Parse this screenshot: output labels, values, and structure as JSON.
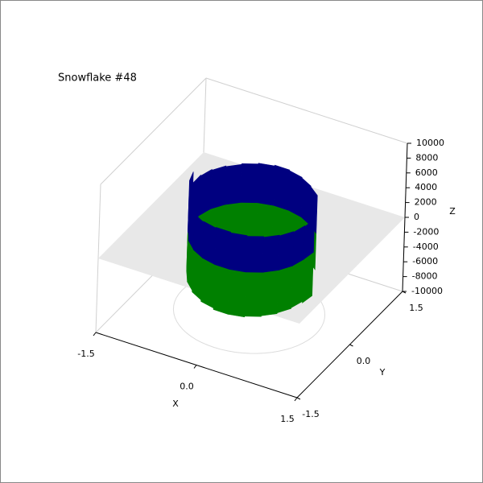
{
  "chart_data": {
    "type": "stem3d",
    "title": "Snowflake #48",
    "xlabel": "X",
    "ylabel": "Y",
    "zlabel": "Z",
    "xlim": [
      -1.5,
      1.5
    ],
    "xticks": [
      -1.5,
      {
        "value": 0,
        "label": "0.0"
      },
      1.5
    ],
    "ylim": [
      -1.5,
      1.5
    ],
    "yticks": [
      -1.5,
      {
        "value": 0,
        "label": "0.0"
      },
      1.5
    ],
    "zlim": [
      -10000,
      10000
    ],
    "zticks": [
      -10000,
      -8000,
      -6000,
      -4000,
      -2000,
      0,
      2000,
      4000,
      6000,
      8000,
      10000
    ],
    "x": [
      0.6,
      0.43,
      0.22,
      0.0,
      -0.22,
      -0.43,
      -0.6,
      -0.74,
      -0.82,
      -0.85,
      -0.82,
      -0.74,
      -0.6,
      -0.43,
      -0.22,
      0.0,
      0.22,
      0.43,
      0.6,
      0.74,
      0.82,
      0.85
    ],
    "y": [
      0.6,
      0.74,
      0.82,
      0.85,
      0.82,
      0.74,
      0.6,
      0.43,
      0.22,
      0.0,
      -0.22,
      -0.43,
      -0.6,
      -0.74,
      -0.82,
      -0.85,
      -0.82,
      -0.74,
      -0.6,
      -0.43,
      -0.22,
      0.0
    ],
    "series": [
      {
        "color": "#000080",
        "values": [
          5200,
          5300,
          5400,
          5500,
          5400,
          5300,
          5200,
          5300,
          5400,
          5500,
          7000,
          5000,
          4800,
          4900,
          5000,
          5100,
          5000,
          4900,
          4800,
          4700,
          4600,
          4500
        ]
      },
      {
        "color": "#008000",
        "values": [
          -4800,
          -4900,
          -5000,
          -5000,
          -4900,
          -4800,
          -4700,
          -4800,
          -4900,
          -5000,
          -5100,
          -5200,
          -5400,
          -5600,
          -5800,
          -6000,
          -6000,
          -5900,
          -5800,
          -5700,
          -5600,
          -5800
        ]
      }
    ]
  }
}
